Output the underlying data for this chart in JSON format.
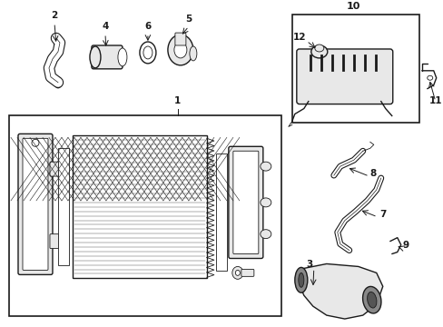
{
  "bg_color": "#ffffff",
  "line_color": "#1a1a1a",
  "gray_fill": "#e8e8e8",
  "dark_gray": "#aaaaaa"
}
